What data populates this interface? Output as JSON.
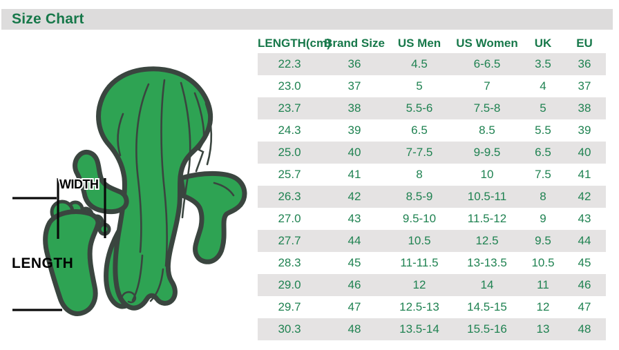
{
  "title_bar": {
    "label": "Size Chart",
    "background": "#dddcdc",
    "text_color": "#17784a"
  },
  "illustration": {
    "name": "green-cactus-foot-mascot",
    "width_label": "WIDTH",
    "length_label": "LENGTH",
    "figure_fill": "#2ea353",
    "figure_outline": "#3a453f",
    "measure_line_color": "#0a0a0a"
  },
  "chart_data": {
    "type": "table",
    "title": "Size Chart",
    "columns": [
      "LENGTH(cm)",
      "Brand Size",
      "US Men",
      "US Women",
      "UK",
      "EU"
    ],
    "rows": [
      [
        "22.3",
        "36",
        "4.5",
        "6-6.5",
        "3.5",
        "36"
      ],
      [
        "23.0",
        "37",
        "5",
        "7",
        "4",
        "37"
      ],
      [
        "23.7",
        "38",
        "5.5-6",
        "7.5-8",
        "5",
        "38"
      ],
      [
        "24.3",
        "39",
        "6.5",
        "8.5",
        "5.5",
        "39"
      ],
      [
        "25.0",
        "40",
        "7-7.5",
        "9-9.5",
        "6.5",
        "40"
      ],
      [
        "25.7",
        "41",
        "8",
        "10",
        "7.5",
        "41"
      ],
      [
        "26.3",
        "42",
        "8.5-9",
        "10.5-11",
        "8",
        "42"
      ],
      [
        "27.0",
        "43",
        "9.5-10",
        "11.5-12",
        "9",
        "43"
      ],
      [
        "27.7",
        "44",
        "10.5",
        "12.5",
        "9.5",
        "44"
      ],
      [
        "28.3",
        "45",
        "11-11.5",
        "13-13.5",
        "10.5",
        "45"
      ],
      [
        "29.0",
        "46",
        "12",
        "14",
        "11",
        "46"
      ],
      [
        "29.7",
        "47",
        "12.5-13",
        "14.5-15",
        "12",
        "47"
      ],
      [
        "30.3",
        "48",
        "13.5-14",
        "15.5-16",
        "13",
        "48"
      ]
    ],
    "header_color": "#17784a",
    "text_color": "#1f8251",
    "row_stripe_colors": [
      "#e5e3e3",
      "#ffffff"
    ]
  }
}
